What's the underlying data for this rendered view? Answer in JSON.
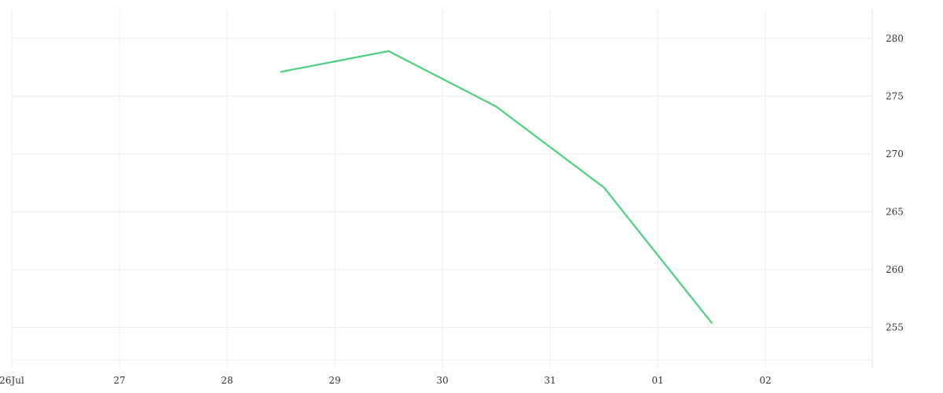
{
  "chart_data": {
    "type": "line",
    "title": "",
    "xlabel": "",
    "ylabel": "",
    "x_ticks": [
      "26Jul",
      "27",
      "28",
      "29",
      "30",
      "31",
      "01",
      "02"
    ],
    "x_range": [
      "2024-07-26",
      "2024-08-02T12:00"
    ],
    "y_ticks": [
      255,
      260,
      265,
      270,
      275,
      280
    ],
    "ylim": [
      251.5,
      282.5
    ],
    "y_axis_position": "right",
    "grid": true,
    "legend": "none",
    "series": [
      {
        "color": "#4cd07d",
        "points": [
          {
            "x": "2024-07-28T12:00",
            "y": 277.1
          },
          {
            "x": "2024-07-29T12:00",
            "y": 278.9
          },
          {
            "x": "2024-07-30T12:00",
            "y": 274.1
          },
          {
            "x": "2024-07-31T12:00",
            "y": 267.1
          },
          {
            "x": "2024-08-01T12:00",
            "y": 255.4
          }
        ]
      }
    ]
  }
}
